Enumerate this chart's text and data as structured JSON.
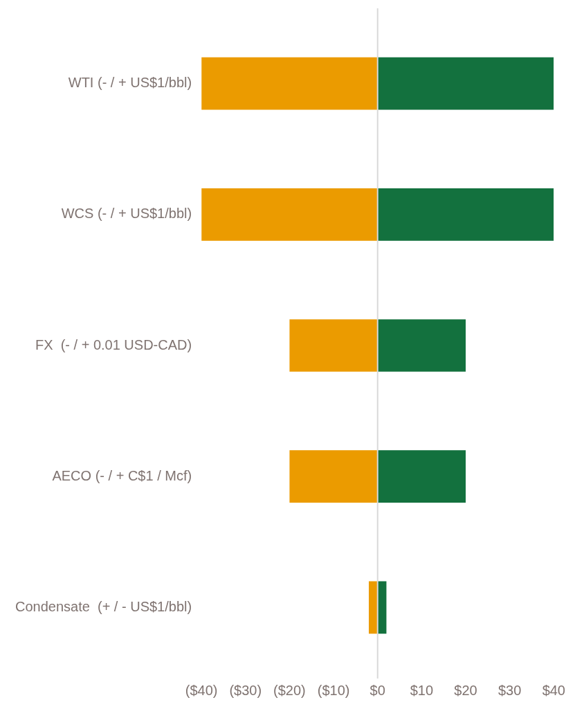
{
  "chart_data": {
    "type": "bar",
    "orientation": "horizontal",
    "stacked": true,
    "categories": [
      "WTI (- / + US$1/bbl)",
      "WCS (- / + US$1/bbl)",
      "FX  (- / + 0.01 USD-CAD)",
      "AECO (- / + C$1 / Mcf)",
      "Condensate  (+ / - US$1/bbl)"
    ],
    "series": [
      {
        "color": "#eb9b00",
        "values": [
          -40,
          -40,
          -20,
          -20,
          -2
        ]
      },
      {
        "color": "#13713e",
        "values": [
          40,
          40,
          20,
          20,
          2
        ]
      }
    ],
    "xlim": [
      -40,
      40
    ],
    "xticks": [
      {
        "value": -40,
        "label": "($40)"
      },
      {
        "value": -30,
        "label": "($30)"
      },
      {
        "value": -20,
        "label": "($20)"
      },
      {
        "value": -10,
        "label": "($10)"
      },
      {
        "value": 0,
        "label": "$0"
      },
      {
        "value": 10,
        "label": "$10"
      },
      {
        "value": 20,
        "label": "$20"
      },
      {
        "value": 30,
        "label": "$30"
      },
      {
        "value": 40,
        "label": "$40"
      }
    ],
    "ref_lines": [
      {
        "axis": "x",
        "value": 0,
        "color": "#d9d9d9"
      }
    ],
    "grid": false,
    "legend": false
  }
}
